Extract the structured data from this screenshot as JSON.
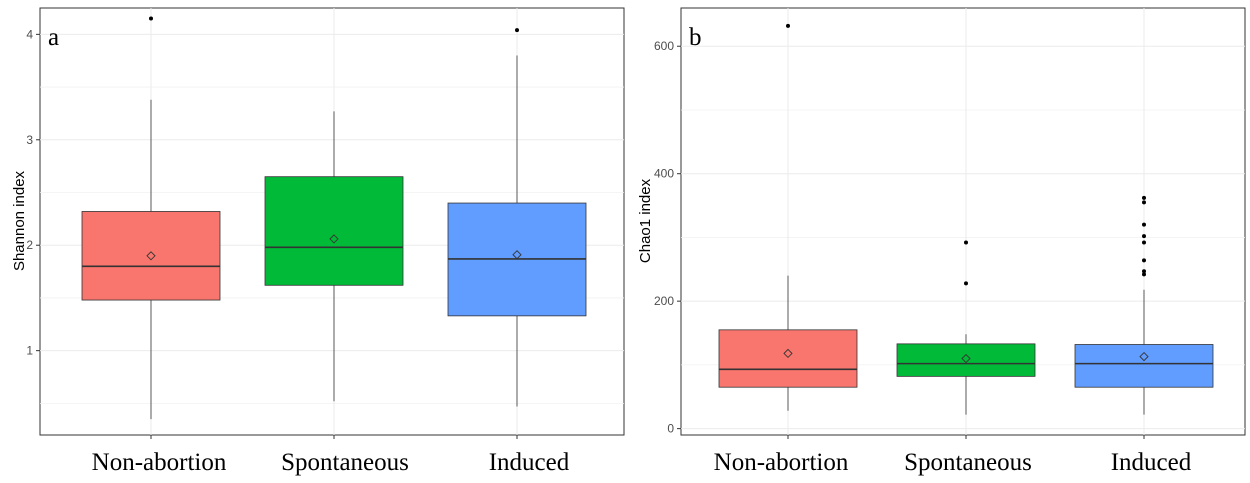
{
  "chart_data": [
    {
      "type": "box",
      "panel_label": "a",
      "ylabel": "Shannon index",
      "xlabel": "",
      "categories": [
        "Non-abortion",
        "Spontaneous",
        "Induced"
      ],
      "ylim": [
        0.2,
        4.25
      ],
      "yticks": [
        1,
        2,
        3,
        4
      ],
      "grid": true,
      "boxes": [
        {
          "category": "Non-abortion",
          "color": "#F8766D",
          "whisker_low": 0.35,
          "q1": 1.48,
          "median": 1.8,
          "q3": 2.32,
          "whisker_high": 3.38,
          "mean": 1.9,
          "outliers": [
            4.15
          ]
        },
        {
          "category": "Spontaneous",
          "color": "#00BA38",
          "whisker_low": 0.52,
          "q1": 1.62,
          "median": 1.98,
          "q3": 2.65,
          "whisker_high": 3.27,
          "mean": 2.06,
          "outliers": []
        },
        {
          "category": "Induced",
          "color": "#619CFF",
          "whisker_low": 0.47,
          "q1": 1.33,
          "median": 1.87,
          "q3": 2.4,
          "whisker_high": 3.8,
          "mean": 1.91,
          "outliers": [
            4.04
          ]
        }
      ]
    },
    {
      "type": "box",
      "panel_label": "b",
      "ylabel": "Chao1 index",
      "xlabel": "",
      "categories": [
        "Non-abortion",
        "Spontaneous",
        "Induced"
      ],
      "ylim": [
        -10,
        660
      ],
      "yticks": [
        0,
        200,
        400,
        600
      ],
      "grid": true,
      "boxes": [
        {
          "category": "Non-abortion",
          "color": "#F8766D",
          "whisker_low": 28,
          "q1": 65,
          "median": 93,
          "q3": 155,
          "whisker_high": 240,
          "mean": 118,
          "outliers": [
            632
          ]
        },
        {
          "category": "Spontaneous",
          "color": "#00BA38",
          "whisker_low": 22,
          "q1": 82,
          "median": 102,
          "q3": 133,
          "whisker_high": 148,
          "mean": 110,
          "outliers": [
            228,
            292
          ]
        },
        {
          "category": "Induced",
          "color": "#619CFF",
          "whisker_low": 22,
          "q1": 65,
          "median": 102,
          "q3": 132,
          "whisker_high": 218,
          "mean": 113,
          "outliers": [
            242,
            247,
            264,
            292,
            302,
            320,
            355,
            362
          ]
        }
      ]
    }
  ]
}
